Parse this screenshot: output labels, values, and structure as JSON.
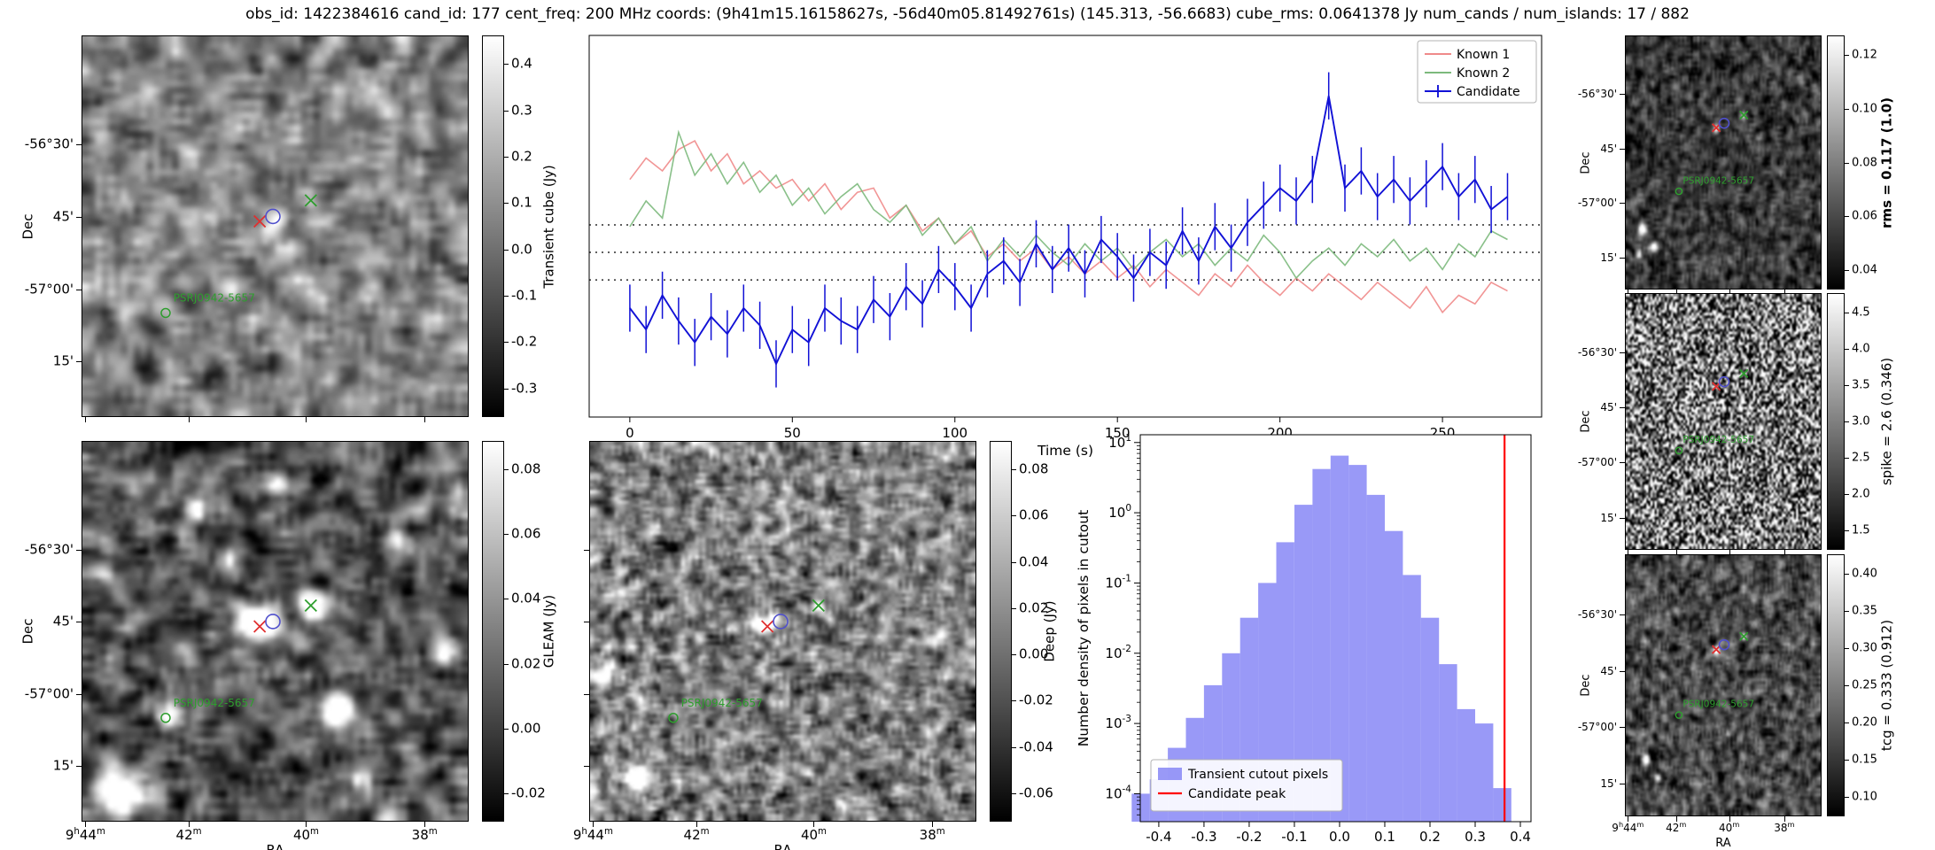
{
  "title": "obs_id: 1422384616 cand_id: 177 cent_freq: 200 MHz coords: (9h41m15.16158627s, -56d40m05.81492761s) (145.313, -56.6683) cube_rms: 0.0641378 Jy num_cands / num_islands: 17 / 882",
  "axis": {
    "dec_label": "Dec",
    "ra_label": "RA",
    "dec_ticks": [
      "-56°30'",
      "45'",
      "-57°00'",
      "15'"
    ],
    "ra_ticks": [
      "9h44m",
      "42m",
      "40m",
      "38m"
    ]
  },
  "source_label": "PSRJ0942-5657",
  "markers": {
    "red_x_color": "#e03030",
    "blue_circle_color": "#5050cc",
    "green_x_color": "#2e9e2e"
  },
  "panels": {
    "transient": {
      "colorbar_label": "Transient cube (Jy)",
      "colorbar_ticks": [
        "0.4",
        "0.3",
        "0.2",
        "0.1",
        "0.0",
        "-0.1",
        "-0.2",
        "-0.3"
      ]
    },
    "gleam": {
      "colorbar_label": "GLEAM (Jy)",
      "colorbar_ticks": [
        "0.08",
        "0.06",
        "0.04",
        "0.02",
        "0.00",
        "-0.02"
      ]
    },
    "deep": {
      "colorbar_label": "Deep (Jy)",
      "colorbar_ticks": [
        "0.08",
        "0.06",
        "0.04",
        "0.02",
        "0.00",
        "-0.02",
        "-0.04",
        "-0.06"
      ]
    },
    "rms": {
      "colorbar_label": "rms = 0.117 (1.0)",
      "colorbar_ticks": [
        "0.12",
        "0.10",
        "0.08",
        "0.06",
        "0.04"
      ]
    },
    "spike": {
      "colorbar_label": "spike = 2.6 (0.346)",
      "colorbar_ticks": [
        "4.5",
        "4.0",
        "3.5",
        "3.0",
        "2.5",
        "2.0",
        "1.5"
      ]
    },
    "tcg": {
      "colorbar_label": "tcg = 0.333 (0.912)",
      "colorbar_ticks": [
        "0.40",
        "0.35",
        "0.30",
        "0.25",
        "0.20",
        "0.15",
        "0.10"
      ]
    }
  },
  "chart_data": [
    {
      "id": "lightcurve",
      "type": "line",
      "title": "",
      "xlabel": "Time (s)",
      "ylabel": "",
      "xlim": [
        -12.5,
        280.5
      ],
      "ylim": [
        -0.384,
        0.506
      ],
      "xticks": [
        0,
        50,
        100,
        150,
        200,
        250
      ],
      "hlines": {
        "values": [
          0.0641378,
          0.0,
          -0.0641378
        ],
        "style": "dotted",
        "color": "#000000"
      },
      "legend_position": "upper right",
      "x": [
        0,
        5,
        10,
        15,
        20,
        25,
        30,
        35,
        40,
        45,
        50,
        55,
        60,
        65,
        70,
        75,
        80,
        85,
        90,
        95,
        100,
        105,
        110,
        115,
        120,
        125,
        130,
        135,
        140,
        145,
        150,
        155,
        160,
        165,
        170,
        175,
        180,
        185,
        190,
        195,
        200,
        205,
        210,
        215,
        220,
        225,
        230,
        235,
        240,
        245,
        250,
        255,
        260,
        265,
        270
      ],
      "series": [
        {
          "name": "Known 1",
          "color": "#ef8a8a",
          "values": [
            0.17,
            0.22,
            0.19,
            0.24,
            0.26,
            0.19,
            0.23,
            0.16,
            0.19,
            0.15,
            0.17,
            0.12,
            0.16,
            0.1,
            0.14,
            0.15,
            0.08,
            0.11,
            0.05,
            0.08,
            0.02,
            0.05,
            -0.01,
            0.02,
            -0.02,
            0.01,
            -0.04,
            -0.01,
            -0.05,
            -0.02,
            -0.06,
            -0.03,
            -0.08,
            -0.04,
            -0.07,
            -0.1,
            -0.05,
            -0.08,
            -0.03,
            -0.07,
            -0.1,
            -0.06,
            -0.09,
            -0.05,
            -0.08,
            -0.11,
            -0.07,
            -0.1,
            -0.13,
            -0.08,
            -0.14,
            -0.1,
            -0.12,
            -0.07,
            -0.09
          ]
        },
        {
          "name": "Known 2",
          "color": "#7cb97c",
          "values": [
            0.06,
            0.12,
            0.08,
            0.28,
            0.18,
            0.23,
            0.16,
            0.21,
            0.14,
            0.18,
            0.11,
            0.15,
            0.09,
            0.13,
            0.16,
            0.1,
            0.07,
            0.11,
            0.04,
            0.08,
            0.02,
            0.06,
            -0.02,
            0.03,
            -0.01,
            0.04,
            0.0,
            -0.03,
            0.02,
            -0.02,
            0.01,
            -0.04,
            0.0,
            0.03,
            -0.01,
            0.02,
            -0.03,
            0.01,
            -0.02,
            0.04,
            0.0,
            -0.06,
            -0.02,
            0.01,
            -0.03,
            0.02,
            -0.01,
            0.03,
            -0.02,
            0.01,
            -0.04,
            0.02,
            -0.01,
            0.05,
            0.03
          ]
        },
        {
          "name": "Candidate",
          "color": "#1111d6",
          "yerr": 0.055,
          "values": [
            -0.13,
            -0.18,
            -0.1,
            -0.16,
            -0.21,
            -0.15,
            -0.19,
            -0.13,
            -0.17,
            -0.26,
            -0.18,
            -0.21,
            -0.13,
            -0.16,
            -0.18,
            -0.11,
            -0.15,
            -0.08,
            -0.12,
            -0.04,
            -0.08,
            -0.13,
            -0.05,
            -0.02,
            -0.07,
            0.02,
            -0.04,
            0.01,
            -0.05,
            0.03,
            -0.01,
            -0.06,
            0.0,
            -0.03,
            0.05,
            -0.02,
            0.06,
            0.01,
            0.07,
            0.11,
            0.15,
            0.12,
            0.17,
            0.365,
            0.15,
            0.19,
            0.13,
            0.17,
            0.12,
            0.16,
            0.2,
            0.13,
            0.17,
            0.1,
            0.13
          ]
        }
      ]
    },
    {
      "id": "flux-histogram",
      "type": "bar",
      "title": "",
      "xlabel": "Flux (Jy)",
      "ylabel": "Number density of pixels in cutout",
      "yscale": "log",
      "xlim": [
        -0.441,
        0.4235
      ],
      "ylim": [
        4e-05,
        12.9
      ],
      "xticks": [
        -0.4,
        -0.3,
        -0.2,
        -0.1,
        0.0,
        0.1,
        0.2,
        0.3,
        0.4
      ],
      "yticks": [
        10,
        1,
        0.1,
        0.01,
        0.001,
        0.0001
      ],
      "bin_width": 0.04,
      "bin_centers": [
        -0.44,
        -0.4,
        -0.36,
        -0.32,
        -0.28,
        -0.24,
        -0.2,
        -0.16,
        -0.12,
        -0.08,
        -0.04,
        0.0,
        0.04,
        0.08,
        0.12,
        0.16,
        0.2,
        0.24,
        0.28,
        0.32,
        0.36
      ],
      "densities": [
        0.0001,
        0.00016,
        0.00045,
        0.0012,
        0.0035,
        0.01,
        0.032,
        0.1,
        0.38,
        1.3,
        4.2,
        6.5,
        4.8,
        1.8,
        0.55,
        0.13,
        0.032,
        0.007,
        0.0016,
        0.001,
        0.00012
      ],
      "bar_color": "#7c7cf5",
      "candidate_peak": {
        "value": 0.365,
        "color": "#ff0000"
      },
      "legend": [
        {
          "label": "Transient cutout pixels",
          "swatch": "patch",
          "color": "#7c7cf5"
        },
        {
          "label": "Candidate peak",
          "swatch": "line",
          "color": "#ff0000"
        }
      ],
      "legend_position": "lower left"
    }
  ]
}
